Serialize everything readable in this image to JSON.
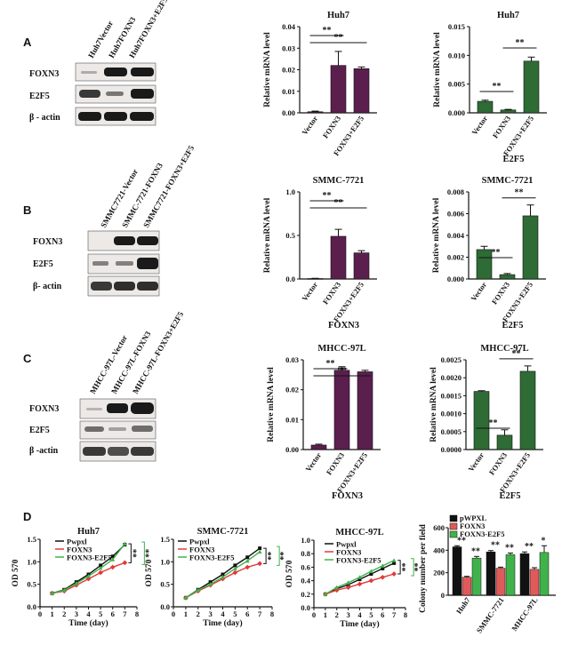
{
  "panels": {
    "A": "A",
    "B": "B",
    "C": "C",
    "D": "D"
  },
  "blots": {
    "A": {
      "lanes": [
        "Huh7Vector",
        "Huh7FOXN3",
        "Huh7FOXN3+E2F5"
      ],
      "rows": [
        "FOXN3",
        "E2F5",
        "β - actin"
      ]
    },
    "B": {
      "lanes": [
        "SMMC7721-Vector",
        "SMMC-7721-FOXN3",
        "SMMC7721-FOXN3+E2F5"
      ],
      "rows": [
        "FOXN3",
        "E2F5",
        "β- actin"
      ]
    },
    "C": {
      "lanes": [
        "MHCC-97L-Vector",
        "MHCC-97L-FOXN3",
        "MHCC-97L-FOXN3+E2F5"
      ],
      "rows": [
        "FOXN3",
        "E2F5",
        "β -actin"
      ]
    }
  },
  "chart_data": [
    {
      "id": "A-foxn3",
      "type": "bar",
      "title": "Huh7",
      "ylabel": "Relative mRNA level",
      "xlabel": "",
      "categories": [
        "Vector",
        "FOXN3",
        "FOXN3+E2F5"
      ],
      "values": [
        0.0005,
        0.022,
        0.0205
      ],
      "errors": [
        0.0003,
        0.0065,
        0.0008
      ],
      "ylim": [
        0,
        0.04
      ],
      "yticks": [
        "0.00",
        "0.01",
        "0.02",
        "0.03",
        "0.04"
      ],
      "significance": [
        "**",
        "**"
      ],
      "color": "#5b1f4e"
    },
    {
      "id": "A-e2f5",
      "type": "bar",
      "title": "Huh7",
      "ylabel": "Relative mRNA level",
      "xlabel": "E2F5",
      "categories": [
        "Vector",
        "FOXN3",
        "FOXN3+E2F5"
      ],
      "values": [
        0.002,
        0.0005,
        0.009
      ],
      "errors": [
        0.0002,
        0.0001,
        0.0007
      ],
      "ylim": [
        0,
        0.015
      ],
      "yticks": [
        "0.000",
        "0.005",
        "0.010",
        "0.015"
      ],
      "significance": [
        "**",
        "**"
      ],
      "color": "#2e6b35"
    },
    {
      "id": "B-foxn3",
      "type": "bar",
      "title": "SMMC-7721",
      "ylabel": "Relative mRNA level",
      "xlabel": "FOXN3",
      "categories": [
        "Vector",
        "FOXN3",
        "FOXN3+E2F5"
      ],
      "values": [
        0.005,
        0.49,
        0.3
      ],
      "errors": [
        0.003,
        0.08,
        0.025
      ],
      "ylim": [
        0,
        1.0
      ],
      "yticks": [
        "0.0",
        "0.5",
        "1.0"
      ],
      "significance": [
        "**",
        "**"
      ],
      "color": "#5b1f4e"
    },
    {
      "id": "B-e2f5",
      "type": "bar",
      "title": "SMMC-7721",
      "ylabel": "Relative mRNA level",
      "xlabel": "E2F5",
      "categories": [
        "Vector",
        "FOXN3",
        "FOXN3+E2F5"
      ],
      "values": [
        0.0027,
        0.0004,
        0.0058
      ],
      "errors": [
        0.0003,
        0.0001,
        0.001
      ],
      "ylim": [
        0,
        0.008
      ],
      "yticks": [
        "0.000",
        "0.002",
        "0.004",
        "0.006",
        "0.008"
      ],
      "significance": [
        "**",
        "**"
      ],
      "color": "#2e6b35"
    },
    {
      "id": "C-foxn3",
      "type": "bar",
      "title": "MHCC-97L",
      "ylabel": "Relative mRNA level",
      "xlabel": "FOXN3",
      "categories": [
        "Vector",
        "FOXN3",
        "FOXN3+E2F5"
      ],
      "values": [
        0.0015,
        0.0265,
        0.026
      ],
      "errors": [
        0.0003,
        0.0012,
        0.0005
      ],
      "ylim": [
        0,
        0.03
      ],
      "yticks": [
        "0.00",
        "0.01",
        "0.02",
        "0.03"
      ],
      "significance": [
        "**",
        "**"
      ],
      "color": "#5b1f4e"
    },
    {
      "id": "C-e2f5",
      "type": "bar",
      "title": "MHCC-97L",
      "ylabel": "Relative mRNA level",
      "xlabel": "E2F5",
      "categories": [
        "Vector",
        "FOXN3",
        "FOXN3+E2F5"
      ],
      "values": [
        0.00162,
        0.0004,
        0.00218
      ],
      "errors": [
        2e-05,
        0.00015,
        0.00015
      ],
      "ylim": [
        0,
        0.0025
      ],
      "yticks": [
        "0.0000",
        "0.0005",
        "0.0010",
        "0.0015",
        "0.0020",
        "0.0025"
      ],
      "significance": [
        "**",
        "**"
      ],
      "color": "#2e6b35"
    },
    {
      "id": "D-huh7",
      "type": "line",
      "title": "Huh7",
      "xlabel": "Time (day)",
      "ylabel": "OD 570",
      "x": [
        1,
        2,
        3,
        4,
        5,
        6,
        7
      ],
      "xlim": [
        0,
        8
      ],
      "ylim": [
        0,
        1.5
      ],
      "xticks": [
        "0",
        "1",
        "2",
        "3",
        "4",
        "5",
        "6",
        "7",
        "8"
      ],
      "yticks": [
        "0.0",
        "0.5",
        "1.0",
        "1.5"
      ],
      "legend": [
        "Pwpxl",
        "FOXN3",
        "FOXN3-E2F5"
      ],
      "significance": [
        "**",
        "**"
      ],
      "series": [
        {
          "name": "Pwpxl",
          "color": "#111111",
          "values": [
            0.3,
            0.38,
            0.55,
            0.72,
            0.92,
            1.12,
            1.38
          ]
        },
        {
          "name": "FOXN3",
          "color": "#e03a3a",
          "values": [
            0.3,
            0.35,
            0.48,
            0.62,
            0.76,
            0.88,
            0.98
          ]
        },
        {
          "name": "FOXN3-E2F5",
          "color": "#3fb34a",
          "values": [
            0.3,
            0.37,
            0.52,
            0.68,
            0.86,
            1.05,
            1.4
          ]
        }
      ]
    },
    {
      "id": "D-smmc",
      "type": "line",
      "title": "SMMC-7721",
      "xlabel": "Time (day)",
      "ylabel": "OD 570",
      "x": [
        1,
        2,
        3,
        4,
        5,
        6,
        7
      ],
      "xlim": [
        0,
        8
      ],
      "ylim": [
        0,
        1.5
      ],
      "xticks": [
        "0",
        "1",
        "2",
        "3",
        "4",
        "5",
        "6",
        "7",
        "8"
      ],
      "yticks": [
        "0.0",
        "0.5",
        "1.0",
        "1.5"
      ],
      "legend": [
        "Pwpxl",
        "FOXN3",
        "FOXN3-E2F5"
      ],
      "significance": [
        "**",
        "**"
      ],
      "series": [
        {
          "name": "Pwpxl",
          "color": "#111111",
          "values": [
            0.2,
            0.38,
            0.55,
            0.72,
            0.92,
            1.1,
            1.3
          ]
        },
        {
          "name": "FOXN3",
          "color": "#e03a3a",
          "values": [
            0.2,
            0.35,
            0.48,
            0.62,
            0.76,
            0.88,
            0.96
          ]
        },
        {
          "name": "FOXN3-E2F5",
          "color": "#3fb34a",
          "values": [
            0.2,
            0.37,
            0.5,
            0.66,
            0.85,
            1.02,
            1.22
          ]
        }
      ]
    },
    {
      "id": "D-mhcc",
      "type": "line",
      "title": "MHCC-97L",
      "xlabel": "Time (day)",
      "ylabel": "OD 570",
      "x": [
        1,
        2,
        3,
        4,
        5,
        6,
        7
      ],
      "xlim": [
        0,
        8
      ],
      "ylim": [
        0,
        1.0
      ],
      "xticks": [
        "0",
        "1",
        "2",
        "3",
        "4",
        "5",
        "6",
        "7",
        "8"
      ],
      "yticks": [
        "0.0",
        "0.2",
        "0.4",
        "0.6",
        "0.8",
        "1.0"
      ],
      "legend": [
        "Pwpxl",
        "FOXN3",
        "FOXN3-E2F5"
      ],
      "significance": [
        "**",
        "**"
      ],
      "series": [
        {
          "name": "Pwpxl",
          "color": "#111111",
          "values": [
            0.2,
            0.28,
            0.34,
            0.42,
            0.5,
            0.58,
            0.66
          ]
        },
        {
          "name": "FOXN3",
          "color": "#e03a3a",
          "values": [
            0.2,
            0.26,
            0.3,
            0.35,
            0.4,
            0.45,
            0.5
          ]
        },
        {
          "name": "FOXN3-E2F5",
          "color": "#3fb34a",
          "values": [
            0.2,
            0.3,
            0.37,
            0.45,
            0.54,
            0.62,
            0.7
          ]
        }
      ]
    },
    {
      "id": "D-colony",
      "type": "bar",
      "title": "",
      "xlabel": "",
      "ylabel": "Colony number per field",
      "categories": [
        "Huh7",
        "SMMC-7721",
        "MHCC-97L"
      ],
      "ylim": [
        0,
        600
      ],
      "yticks": [
        "0",
        "200",
        "400",
        "600"
      ],
      "legend": [
        "pWPXL",
        "FOXN3",
        "FOXN3-E2F5"
      ],
      "significance": [
        "**",
        "**",
        "**",
        "**",
        "**",
        "*"
      ],
      "series": [
        {
          "name": "pWPXL",
          "color": "#111111",
          "values": [
            430,
            385,
            370
          ],
          "errors": [
            10,
            12,
            15
          ]
        },
        {
          "name": "FOXN3",
          "color": "#e05a5a",
          "values": [
            160,
            240,
            230
          ],
          "errors": [
            8,
            10,
            15
          ]
        },
        {
          "name": "FOXN3-E2F5",
          "color": "#3fb34a",
          "values": [
            330,
            360,
            380
          ],
          "errors": [
            15,
            15,
            60
          ]
        }
      ]
    }
  ]
}
